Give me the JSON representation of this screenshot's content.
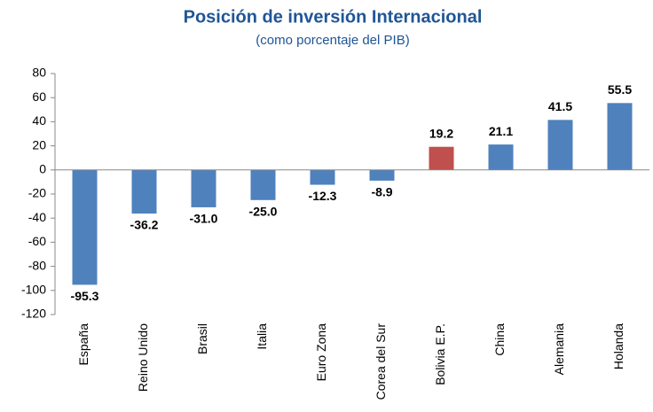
{
  "chart_data": {
    "type": "bar",
    "title": "Posición de inversión Internacional",
    "subtitle": "(como porcentaje del PIB)",
    "categories": [
      "España",
      "Reino Unido",
      "Brasil",
      "Italia",
      "Euro Zona",
      "Corea del Sur",
      "Bolivia E.P.",
      "China",
      "Alemania",
      "Holanda"
    ],
    "values": [
      -95.3,
      -36.2,
      -31,
      -25,
      -12.3,
      -8.9,
      19.2,
      21.1,
      41.5,
      55.5
    ],
    "value_labels": [
      "-95.3",
      "-36.2",
      "-31.0",
      "-25.0",
      "-12.3",
      "-8.9",
      "19.2",
      "21.1",
      "41.5",
      "55.5"
    ],
    "colors": [
      "#4f81bd",
      "#4f81bd",
      "#4f81bd",
      "#4f81bd",
      "#4f81bd",
      "#4f81bd",
      "#c0504d",
      "#4f81bd",
      "#4f81bd",
      "#4f81bd"
    ],
    "ylim": [
      -120,
      80
    ],
    "yticks": [
      -120,
      -100,
      -80,
      -60,
      -40,
      -20,
      0,
      20,
      40,
      60,
      80
    ],
    "grid": false
  }
}
